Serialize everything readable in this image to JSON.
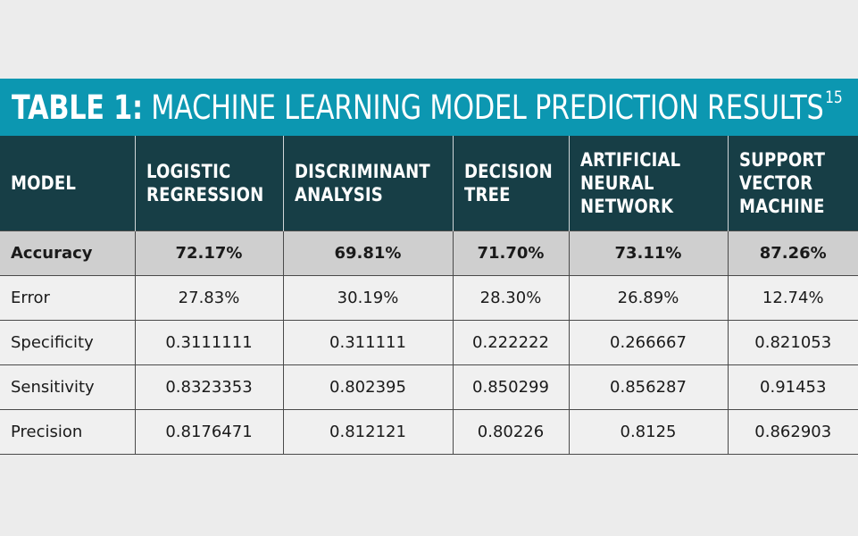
{
  "title": {
    "bold": "TABLE 1:",
    "rest": " MACHINE LEARNING MODEL PREDICTION RESULTS",
    "superscript": "15"
  },
  "table": {
    "headers": [
      "MODEL",
      "LOGISTIC\nREGRESSION",
      "DISCRIMINANT\nANALYSIS",
      "DECISION\nTREE",
      "ARTIFICIAL\nNEURAL\nNETWORK",
      "SUPPORT\nVECTOR\nMACHINE"
    ],
    "rows": [
      {
        "label": "Accuracy",
        "bold": true,
        "values": [
          "72.17%",
          "69.81%",
          "71.70%",
          "73.11%",
          "87.26%"
        ]
      },
      {
        "label": "Error",
        "bold": false,
        "values": [
          "27.83%",
          "30.19%",
          "28.30%",
          "26.89%",
          "12.74%"
        ]
      },
      {
        "label": "Specificity",
        "bold": false,
        "values": [
          "0.3111111",
          "0.311111",
          "0.222222",
          "0.266667",
          "0.821053"
        ]
      },
      {
        "label": "Sensitivity",
        "bold": false,
        "values": [
          "0.8323353",
          "0.802395",
          "0.850299",
          "0.856287",
          "0.91453"
        ]
      },
      {
        "label": "Precision",
        "bold": false,
        "values": [
          "0.8176471",
          "0.812121",
          "0.80226",
          "0.8125",
          "0.862903"
        ]
      }
    ]
  },
  "colors": {
    "title_bg": "#0c97b1",
    "header_bg": "#173e46",
    "highlight_row_bg": "#cfcfcf",
    "page_bg": "#ececec"
  }
}
